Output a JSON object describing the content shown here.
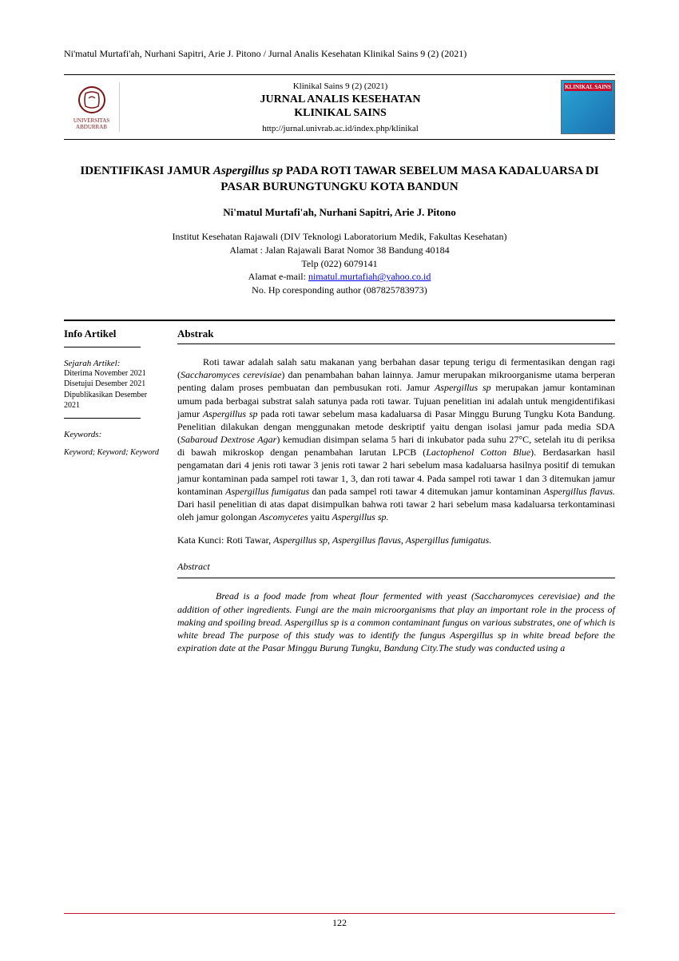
{
  "running_head": "Ni'matul Murtafi'ah, Nurhani Sapitri, Arie J. Pitono / Jurnal Analis Kesehatan Klinikal Sains 9 (2) (2021)",
  "journal": {
    "logo_text": "UNIVERSITAS ABDURRAB",
    "issue": "Klinikal Sains 9 (2) (2021)",
    "name_line1": "JURNAL ANALIS KESEHATAN",
    "name_line2": "KLINIKAL SAINS",
    "url": "http://jurnal.univrab.ac.id/index.php/klinikal",
    "cover_title": "KLINIKAL SAINS"
  },
  "title": {
    "part1": "IDENTIFIKASI JAMUR ",
    "italic": "Aspergillus sp",
    "part2": " PADA ROTI TAWAR SEBELUM MASA KADALUARSA DI PASAR BURUNGTUNGKU KOTA BANDUN"
  },
  "authors": "Ni'matul Murtafi'ah, Nurhani Sapitri, Arie J. Pitono",
  "affiliation": {
    "line1": "Institut Kesehatan Rajawali (DIV Teknologi Laboratorium Medik, Fakultas Kesehatan)",
    "line2": "Alamat : Jalan Rajawali Barat Nomor 38 Bandung 40184",
    "line3": "Telp (022) 6079141",
    "email_label": "Alamat e-mail: ",
    "email": "nimatul.murtafiah@yahoo.co.id",
    "line5": "No. Hp coresponding author (087825783973)"
  },
  "info": {
    "heading": "Info Artikel",
    "history_title": "Sejarah Artikel:",
    "history": "Diterima  November 2021\nDisetujui  Desember 2021\nDipublikasikan Desember 2021",
    "keywords_label": "Keywords:",
    "keywords": "Keyword; Keyword; Keyword"
  },
  "abstrak": {
    "heading": "Abstrak",
    "body_html": "Roti tawar adalah salah satu makanan yang berbahan dasar tepung terigu di fermentasikan dengan ragi (<span class='it'>Saccharomyces cerevisiae</span>) dan penambahan bahan lainnya. Jamur merupakan mikroorganisme utama berperan penting dalam proses pembuatan dan pembusukan roti. Jamur <span class='it'>Aspergillus sp</span> merupakan jamur kontaminan umum pada berbagai substrat salah satunya pada roti tawar.  Tujuan penelitian ini adalah untuk mengidentifikasi jamur <span class='it'>Aspergillus sp</span> pada roti tawar sebelum masa kadaluarsa di Pasar Minggu Burung Tungku Kota Bandung. Penelitian dilakukan dengan menggunakan metode deskriptif yaitu dengan isolasi jamur pada media SDA (<span class='it'>Sabaroud Dextrose Agar</span>) kemudian disimpan selama 5 hari di inkubator pada suhu 27°C, setelah itu di periksa di bawah mikroskop dengan penambahan larutan LPCB (<span class='it'>Lactophenol Cotton Blue</span>). Berdasarkan hasil pengamatan dari 4 jenis roti tawar 3 jenis roti tawar 2 hari sebelum masa kadaluarsa hasilnya positif di temukan jamur kontaminan pada sampel roti tawar 1, 3, dan roti tawar 4. Pada sampel roti tawar 1 dan 3 ditemukan jamur kontaminan <span class='it'>Aspergillus fumigatus</span> dan pada sampel roti tawar 4 ditemukan jamur kontaminan <span class='it'>Aspergillus flavus.</span> Dari hasil penelitian di atas dapat disimpulkan bahwa roti tawar 2 hari sebelum masa kadaluarsa terkontaminasi oleh jamur golongan <span class='it'>Ascomycetes</span> yaitu <span class='it'>Aspergillus sp.</span>",
    "kata_kunci_label": "Kata Kunci: ",
    "kata_kunci_html": "Roti Tawar, <span class='it'>Aspergillus sp</span>, <span class='it'>Aspergillus flavus, Aspergillus fumigatus.</span>"
  },
  "abstract_en": {
    "heading": "Abstract",
    "body": "Bread is a food made from wheat flour fermented with yeast (Saccharomyces cerevisiae) and the addition of other ingredients. Fungi are the main microorganisms that play an important role in the process of making and spoiling bread. Aspergillus sp is a common contaminant fungus on various substrates, one of which is white bread The purpose of this study was to identify the fungus Aspergillus sp in white bread before the expiration date at the Pasar Minggu Burung Tungku, Bandung City.The study was conducted using a"
  },
  "page_number": "122",
  "colors": {
    "rule_red": "#c7102e",
    "link": "#0000ee",
    "logo": "#7a1515"
  }
}
